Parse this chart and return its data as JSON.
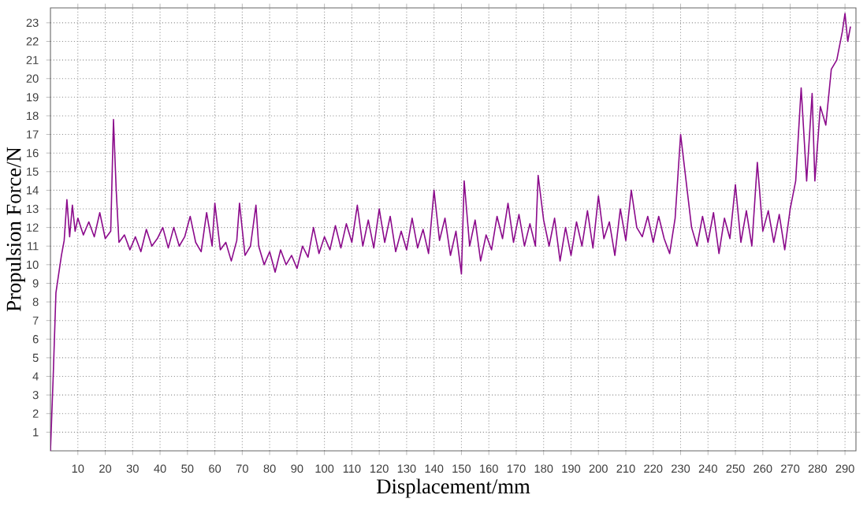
{
  "chart_data": {
    "type": "line",
    "xlabel": "Displacement/mm",
    "ylabel": "Propulsion Force/N",
    "xlim": [
      0,
      294
    ],
    "ylim": [
      0,
      23.8
    ],
    "xticks": [
      10,
      20,
      30,
      40,
      50,
      60,
      70,
      80,
      90,
      100,
      110,
      120,
      130,
      140,
      150,
      160,
      170,
      180,
      190,
      200,
      210,
      220,
      230,
      240,
      250,
      260,
      270,
      280,
      290
    ],
    "yticks": [
      1,
      2,
      3,
      4,
      5,
      6,
      7,
      8,
      9,
      10,
      11,
      12,
      13,
      14,
      15,
      16,
      17,
      18,
      19,
      20,
      21,
      22,
      23
    ],
    "grid": true,
    "legend": false,
    "marker": "none",
    "line_style": "solid",
    "series": [
      {
        "color": "#8b0a8b",
        "x": [
          0,
          1,
          2,
          3,
          4,
          5,
          6,
          7,
          8,
          9,
          10,
          12,
          14,
          16,
          18,
          20,
          22,
          23,
          24,
          25,
          27,
          29,
          31,
          33,
          35,
          37,
          39,
          41,
          43,
          45,
          47,
          49,
          51,
          53,
          55,
          57,
          59,
          60,
          62,
          64,
          66,
          68,
          69,
          71,
          73,
          75,
          76,
          78,
          80,
          82,
          84,
          86,
          88,
          90,
          92,
          94,
          96,
          98,
          100,
          102,
          104,
          106,
          108,
          110,
          112,
          114,
          116,
          118,
          120,
          122,
          124,
          126,
          128,
          130,
          132,
          134,
          136,
          138,
          140,
          142,
          144,
          146,
          148,
          150,
          151,
          153,
          155,
          157,
          159,
          161,
          163,
          165,
          167,
          169,
          171,
          173,
          175,
          177,
          178,
          180,
          182,
          184,
          186,
          188,
          190,
          192,
          194,
          196,
          198,
          200,
          202,
          204,
          206,
          208,
          210,
          212,
          214,
          216,
          218,
          220,
          222,
          224,
          226,
          228,
          230,
          232,
          234,
          236,
          238,
          240,
          242,
          244,
          246,
          248,
          250,
          252,
          254,
          256,
          258,
          260,
          262,
          264,
          266,
          268,
          270,
          272,
          274,
          276,
          278,
          279,
          281,
          283,
          285,
          287,
          289,
          290,
          291,
          292
        ],
        "values": [
          0,
          4,
          8.5,
          9.5,
          10.5,
          11.3,
          13.5,
          11.5,
          13.2,
          11.8,
          12.5,
          11.6,
          12.3,
          11.5,
          12.8,
          11.4,
          11.8,
          17.8,
          14,
          11.2,
          11.6,
          10.8,
          11.5,
          10.7,
          11.9,
          11,
          11.4,
          12,
          10.9,
          12,
          11,
          11.5,
          12.6,
          11.2,
          10.7,
          12.8,
          11,
          13.3,
          10.8,
          11.2,
          10.2,
          11.3,
          13.3,
          10.5,
          11,
          13.2,
          11,
          10,
          10.7,
          9.6,
          10.8,
          10,
          10.5,
          9.8,
          11,
          10.4,
          12,
          10.6,
          11.5,
          10.8,
          12.1,
          10.9,
          12.2,
          11.2,
          13.2,
          11,
          12.4,
          10.9,
          13,
          11.2,
          12.6,
          10.7,
          11.8,
          10.8,
          12.5,
          10.9,
          11.9,
          10.6,
          14,
          11.3,
          12.5,
          10.5,
          11.8,
          9.5,
          14.5,
          11,
          12.4,
          10.2,
          11.6,
          10.8,
          12.6,
          11.4,
          13.3,
          11.2,
          12.7,
          11,
          12.2,
          11,
          14.8,
          12.4,
          11,
          12.5,
          10.2,
          12,
          10.5,
          12.3,
          11,
          12.9,
          10.9,
          13.7,
          11.4,
          12.3,
          10.5,
          13,
          11.3,
          14,
          12,
          11.5,
          12.6,
          11.2,
          12.6,
          11.4,
          10.6,
          12.5,
          17,
          14.5,
          12,
          11,
          12.6,
          11.2,
          12.8,
          10.6,
          12.5,
          11.4,
          14.3,
          11.2,
          12.9,
          11,
          15.5,
          11.8,
          12.9,
          11.2,
          12.7,
          10.8,
          13,
          14.5,
          19.5,
          14.5,
          19.2,
          14.5,
          18.5,
          17.5,
          20.5,
          21,
          22.5,
          23.5,
          22,
          22.8
        ]
      }
    ]
  }
}
